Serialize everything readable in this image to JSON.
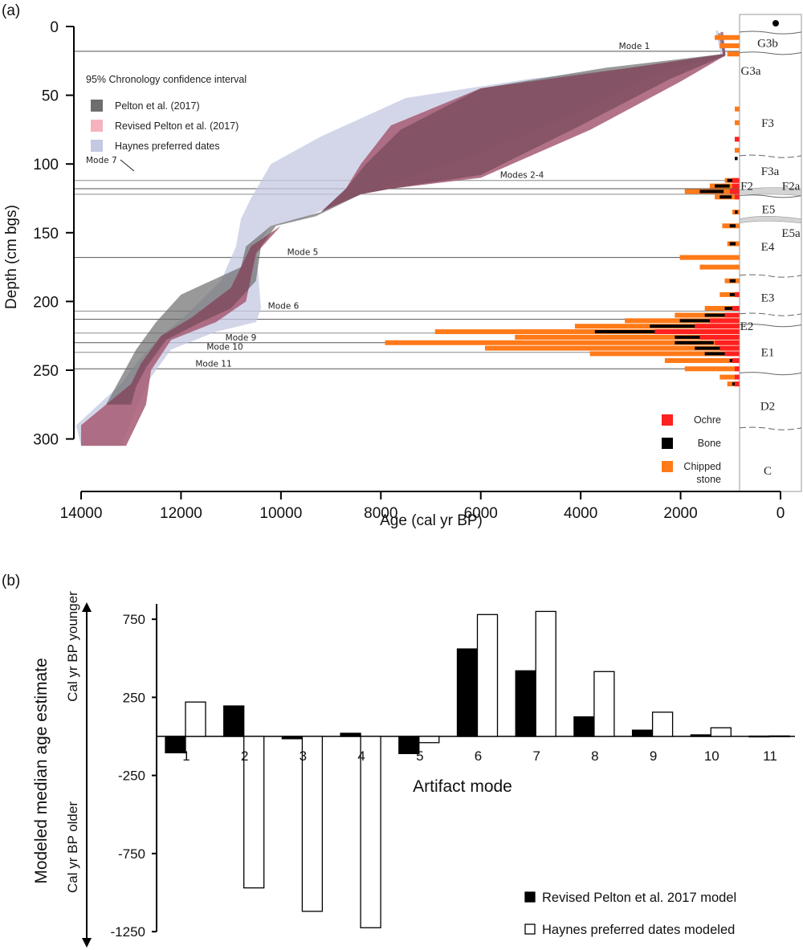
{
  "figure": {
    "panel_a_label": "(a)",
    "panel_b_label": "(b)"
  },
  "chart_data": [
    {
      "type": "area",
      "title": "",
      "xlabel": "Age (cal yr BP)",
      "ylabel": "Depth (cm bgs)",
      "xlim": [
        14000,
        0
      ],
      "ylim": [
        0,
        300
      ],
      "x_ticks": [
        "14000",
        "12000",
        "10000",
        "8000",
        "6000",
        "4000",
        "2000",
        "0"
      ],
      "y_ticks": [
        "0",
        "50",
        "100",
        "150",
        "200",
        "250",
        "300"
      ],
      "legend_title": "95% Chronology confidence interval",
      "legend_position": "top-left",
      "legend": [
        {
          "label": "Pelton et al. (2017)",
          "color": "#6e6e6e"
        },
        {
          "label": "Revised Pelton et al. (2017)",
          "color": "#f4b3bf"
        },
        {
          "label": "Haynes preferred dates",
          "color": "#c4c8e2"
        }
      ],
      "series": [
        {
          "name": "Haynes preferred dates",
          "color": "#c4c8e2",
          "upper": [
            [
              1300,
              3
            ],
            [
              1200,
              20
            ],
            [
              2500,
              28
            ],
            [
              5000,
              38
            ],
            [
              7500,
              52
            ],
            [
              9200,
              80
            ],
            [
              10200,
              100
            ],
            [
              10600,
              125
            ],
            [
              10800,
              140
            ],
            [
              10900,
              160
            ],
            [
              11200,
              185
            ],
            [
              11900,
              210
            ],
            [
              12400,
              225
            ],
            [
              12900,
              245
            ],
            [
              13200,
              260
            ],
            [
              14100,
              290
            ],
            [
              14000,
              305
            ]
          ],
          "lower": [
            [
              1250,
              3
            ],
            [
              1100,
              22
            ],
            [
              2300,
              32
            ],
            [
              4200,
              65
            ],
            [
              6200,
              95
            ],
            [
              7800,
              115
            ],
            [
              8600,
              125
            ],
            [
              9600,
              140
            ],
            [
              10200,
              145
            ],
            [
              10500,
              160
            ],
            [
              10400,
              205
            ],
            [
              10500,
              215
            ],
            [
              11300,
              222
            ],
            [
              12200,
              235
            ],
            [
              12600,
              255
            ],
            [
              12800,
              270
            ],
            [
              13200,
              305
            ]
          ]
        },
        {
          "name": "Revised Pelton et al. (2017)",
          "color": "#f4b3bf",
          "upper": [
            [
              1200,
              4
            ],
            [
              1150,
              20
            ],
            [
              3000,
              30
            ],
            [
              6000,
              45
            ],
            [
              7800,
              72
            ],
            [
              8400,
              100
            ],
            [
              8700,
              118
            ],
            [
              9200,
              135
            ],
            [
              10000,
              145
            ],
            [
              10600,
              160
            ],
            [
              11000,
              190
            ],
            [
              11800,
              212
            ],
            [
              12400,
              225
            ],
            [
              12800,
              245
            ],
            [
              13000,
              260
            ],
            [
              14000,
              290
            ],
            [
              14000,
              305
            ]
          ],
          "lower": [
            [
              1150,
              4
            ],
            [
              1100,
              21
            ],
            [
              2000,
              40
            ],
            [
              3800,
              75
            ],
            [
              6000,
              110
            ],
            [
              7800,
              118
            ],
            [
              8400,
              122
            ],
            [
              9200,
              135
            ],
            [
              10000,
              145
            ],
            [
              10500,
              165
            ],
            [
              10700,
              200
            ],
            [
              11300,
              215
            ],
            [
              12200,
              228
            ],
            [
              12600,
              250
            ],
            [
              12700,
              275
            ],
            [
              13100,
              305
            ]
          ]
        },
        {
          "name": "Pelton et al. (2017)",
          "color": "#6e6e6e",
          "upper": [
            [
              1250,
              5
            ],
            [
              1150,
              20
            ],
            [
              3500,
              30
            ],
            [
              6000,
              45
            ],
            [
              7600,
              75
            ],
            [
              8300,
              100
            ],
            [
              8700,
              118
            ],
            [
              9200,
              135
            ],
            [
              10200,
              145
            ],
            [
              10700,
              160
            ],
            [
              10800,
              175
            ],
            [
              11400,
              185
            ],
            [
              12000,
              195
            ],
            [
              12500,
              215
            ],
            [
              12900,
              235
            ],
            [
              13200,
              255
            ],
            [
              13500,
              275
            ]
          ],
          "lower": [
            [
              1200,
              5
            ],
            [
              1100,
              21
            ],
            [
              2200,
              38
            ],
            [
              4000,
              72
            ],
            [
              6000,
              108
            ],
            [
              7800,
              118
            ],
            [
              8400,
              122
            ],
            [
              9300,
              138
            ],
            [
              10100,
              145
            ],
            [
              10400,
              160
            ],
            [
              10500,
              185
            ],
            [
              11000,
              205
            ],
            [
              11600,
              215
            ],
            [
              12300,
              228
            ],
            [
              12700,
              248
            ],
            [
              12900,
              262
            ],
            [
              13000,
              275
            ]
          ]
        }
      ],
      "mode_lines": [
        {
          "label": "Mode 1",
          "depth": 18
        },
        {
          "label": "Modes 2-4",
          "depth": 112
        },
        {
          "label": "",
          "depth": 118
        },
        {
          "label": "",
          "depth": 122
        },
        {
          "label": "Mode 5",
          "depth": 168
        },
        {
          "label": "Mode 6",
          "depth": 207
        },
        {
          "label": "Mode 7",
          "depth": 213
        },
        {
          "label": "",
          "depth": 223
        },
        {
          "label": "Mode 9",
          "depth": 230
        },
        {
          "label": "Mode 10",
          "depth": 237
        },
        {
          "label": "Mode 11",
          "depth": 249
        }
      ],
      "artifact_legend": [
        {
          "label": "Ochre",
          "color": "#ff2020"
        },
        {
          "label": "Bone",
          "color": "#000000"
        },
        {
          "label": "Chipped stone",
          "color": "#ff7a18"
        }
      ],
      "artifact_histogram": {
        "note": "artifact counts plotted as horizontal bars extending left from the section column; length in x-axis units (cal yr BP scale)",
        "rows": [
          {
            "depth": 8,
            "chipped": 1200,
            "bone": 0,
            "ochre": 0
          },
          {
            "depth": 14,
            "chipped": 1100,
            "bone": 0,
            "ochre": 0
          },
          {
            "depth": 20,
            "chipped": 950,
            "bone": 0,
            "ochre": 0
          },
          {
            "depth": 60,
            "chipped": 780,
            "bone": 0,
            "ochre": 0
          },
          {
            "depth": 70,
            "chipped": 800,
            "bone": 0,
            "ochre": 0
          },
          {
            "depth": 82,
            "chipped": 0,
            "bone": 0,
            "ochre": 760
          },
          {
            "depth": 90,
            "chipped": 780,
            "bone": 0,
            "ochre": 0
          },
          {
            "depth": 96,
            "chipped": 0,
            "bone": 800,
            "ochre": 0
          },
          {
            "depth": 112,
            "chipped": 1000,
            "bone": 950,
            "ochre": 850
          },
          {
            "depth": 116,
            "chipped": 1300,
            "bone": 1200,
            "ochre": 850
          },
          {
            "depth": 120,
            "chipped": 1800,
            "bone": 1500,
            "ochre": 900
          },
          {
            "depth": 124,
            "chipped": 1200,
            "bone": 1100,
            "ochre": 800
          },
          {
            "depth": 135,
            "chipped": 850,
            "bone": 800,
            "ochre": 0
          },
          {
            "depth": 145,
            "chipped": 1050,
            "bone": 900,
            "ochre": 0
          },
          {
            "depth": 158,
            "chipped": 950,
            "bone": 900,
            "ochre": 0
          },
          {
            "depth": 168,
            "chipped": 1900,
            "bone": 0,
            "ochre": 0
          },
          {
            "depth": 175,
            "chipped": 1500,
            "bone": 0,
            "ochre": 0
          },
          {
            "depth": 185,
            "chipped": 1000,
            "bone": 900,
            "ochre": 0
          },
          {
            "depth": 195,
            "chipped": 1100,
            "bone": 900,
            "ochre": 800
          },
          {
            "depth": 205,
            "chipped": 1400,
            "bone": 1000,
            "ochre": 850
          },
          {
            "depth": 210,
            "chipped": 2000,
            "bone": 1400,
            "ochre": 1000
          },
          {
            "depth": 214,
            "chipped": 3000,
            "bone": 1900,
            "ochre": 1300
          },
          {
            "depth": 218,
            "chipped": 4000,
            "bone": 2500,
            "ochre": 1600
          },
          {
            "depth": 222,
            "chipped": 6800,
            "bone": 3600,
            "ochre": 2400
          },
          {
            "depth": 226,
            "chipped": 5200,
            "bone": 2000,
            "ochre": 1500
          },
          {
            "depth": 230,
            "chipped": 7800,
            "bone": 2000,
            "ochre": 1200
          },
          {
            "depth": 234,
            "chipped": 5800,
            "bone": 1600,
            "ochre": 1100
          },
          {
            "depth": 238,
            "chipped": 3700,
            "bone": 1400,
            "ochre": 1000
          },
          {
            "depth": 243,
            "chipped": 2200,
            "bone": 900,
            "ochre": 850
          },
          {
            "depth": 249,
            "chipped": 1800,
            "bone": 0,
            "ochre": 800
          },
          {
            "depth": 255,
            "chipped": 1100,
            "bone": 0,
            "ochre": 800
          },
          {
            "depth": 260,
            "chipped": 950,
            "bone": 850,
            "ochre": 800
          }
        ]
      },
      "stratigraphy": [
        {
          "label": "G3b",
          "depth": 12
        },
        {
          "label": "G3a",
          "depth": 32
        },
        {
          "label": "F3",
          "depth": 70
        },
        {
          "label": "F3a",
          "depth": 105
        },
        {
          "label": "F2",
          "depth": 116
        },
        {
          "label": "F2a",
          "depth": 116
        },
        {
          "label": "E5",
          "depth": 133
        },
        {
          "label": "E5a",
          "depth": 150
        },
        {
          "label": "E4",
          "depth": 160
        },
        {
          "label": "E3",
          "depth": 197
        },
        {
          "label": "E2",
          "depth": 218
        },
        {
          "label": "E1",
          "depth": 237
        },
        {
          "label": "D2",
          "depth": 276
        },
        {
          "label": "C",
          "depth": 323
        }
      ]
    },
    {
      "type": "bar",
      "title": "",
      "xlabel": "Artifact mode",
      "ylabel": "Modeled median age estimate",
      "ylabel_upper": "Cal yr BP younger",
      "ylabel_lower": "Cal yr BP older",
      "ylim": [
        -1300,
        850
      ],
      "y_ticks": [
        "750",
        "250",
        "-250",
        "-750",
        "-1250"
      ],
      "categories": [
        "1",
        "2",
        "3",
        "4",
        "5",
        "6",
        "7",
        "8",
        "9",
        "10",
        "11"
      ],
      "legend_position": "bottom-right",
      "series": [
        {
          "name": "Revised Pelton et al. 2017 model",
          "fill": "#000000",
          "values": [
            -105,
            195,
            -15,
            20,
            -110,
            560,
            420,
            125,
            40,
            10,
            2
          ]
        },
        {
          "name": "Haynes preferred dates modeled",
          "fill": "#ffffff",
          "values": [
            220,
            -970,
            -1120,
            -1225,
            -40,
            780,
            800,
            415,
            155,
            55,
            3
          ]
        }
      ]
    }
  ]
}
